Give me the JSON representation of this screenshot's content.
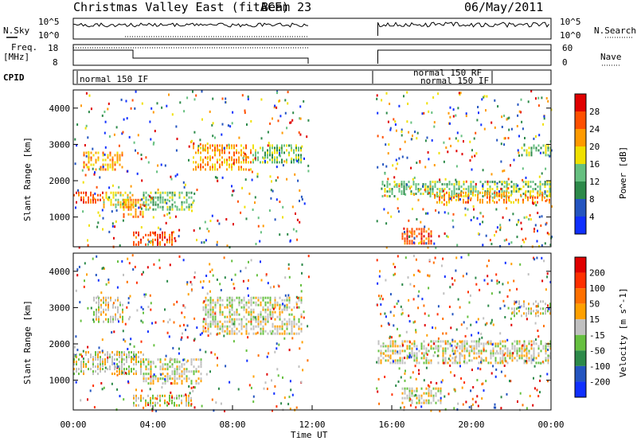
{
  "header": {
    "title": "Christmas Valley East (fitACF)",
    "beam": "Beam 23",
    "date": "06/May/2011"
  },
  "strips": {
    "nsky_label": "N.Sky",
    "nsky_ticks": [
      "10^5",
      "10^0"
    ],
    "nsearch_label": "N.Search",
    "nsearch_ticks": [
      "10^5",
      "10^0"
    ],
    "freq_label": "Freq.",
    "freq_unit": "[MHz]",
    "freq_ticks": [
      "18",
      "8"
    ],
    "nave_label": "Nave",
    "nave_ticks": [
      "60",
      "0"
    ],
    "cpid_label": "CPID",
    "cpid_entries": [
      "normal 150 IF",
      "normal 150 RF",
      "normal 150 IF"
    ]
  },
  "chart_data": [
    {
      "type": "heatmap",
      "title": "",
      "ylabel": "Slant Range [km]",
      "xlabel": "",
      "ylim": [
        180,
        4500
      ],
      "yticks": [
        1000,
        2000,
        3000,
        4000
      ],
      "colorbar_label": "Power [dB]",
      "colorbar_ticks": [
        4,
        8,
        12,
        16,
        20,
        24,
        28
      ],
      "colors": [
        "#1030ff",
        "#2455c0",
        "#2d8a4a",
        "#66c080",
        "#f0e000",
        "#ff9a00",
        "#ff5000",
        "#e00000"
      ],
      "bands": [
        {
          "x": [
            0.0,
            1.5
          ],
          "y": [
            1400,
            1700
          ],
          "level": 6
        },
        {
          "x": [
            1.5,
            3.0
          ],
          "y": [
            1300,
            1700
          ],
          "level": 4
        },
        {
          "x": [
            0.5,
            2.5
          ],
          "y": [
            2300,
            2800
          ],
          "level": 5
        },
        {
          "x": [
            2.5,
            3.5
          ],
          "y": [
            1000,
            1500
          ],
          "level": 5
        },
        {
          "x": [
            3.0,
            5.0
          ],
          "y": [
            250,
            600
          ],
          "level": 6
        },
        {
          "x": [
            3.5,
            6.0
          ],
          "y": [
            1200,
            1700
          ],
          "level": 3
        },
        {
          "x": [
            6.0,
            9.0
          ],
          "y": [
            2300,
            3000
          ],
          "level": 5
        },
        {
          "x": [
            9.0,
            11.5
          ],
          "y": [
            2500,
            3000
          ],
          "level": 3
        },
        {
          "x": [
            15.5,
            24.0
          ],
          "y": [
            1600,
            2000
          ],
          "level": 3
        },
        {
          "x": [
            18.0,
            24.0
          ],
          "y": [
            1400,
            1700
          ],
          "level": 5
        },
        {
          "x": [
            16.5,
            18.0
          ],
          "y": [
            300,
            700
          ],
          "level": 6
        },
        {
          "x": [
            22.5,
            24.0
          ],
          "y": [
            2700,
            3000
          ],
          "level": 3
        }
      ]
    },
    {
      "type": "heatmap",
      "title": "",
      "ylabel": "Slant Range [km]",
      "xlabel": "Time UT",
      "ylim": [
        180,
        4500
      ],
      "yticks": [
        1000,
        2000,
        3000,
        4000
      ],
      "xticks": [
        "00:00",
        "04:00",
        "08:00",
        "12:00",
        "16:00",
        "20:00",
        "00:00"
      ],
      "x_range_hours": [
        0,
        24
      ],
      "colorbar_label": "Velocity [m s^-1]",
      "colorbar_ticks": [
        200,
        100,
        50,
        15,
        -15,
        -50,
        -100,
        -200
      ],
      "colors": [
        "#1030ff",
        "#2455c0",
        "#2d8a4a",
        "#66c040",
        "#c0c0c0",
        "#ffa000",
        "#ff7000",
        "#ff3000",
        "#e00000"
      ],
      "bands": [
        {
          "x": [
            0.0,
            3.5
          ],
          "y": [
            1200,
            1800
          ],
          "level": 4
        },
        {
          "x": [
            1.0,
            2.5
          ],
          "y": [
            2600,
            3300
          ],
          "level": 4
        },
        {
          "x": [
            3.0,
            6.0
          ],
          "y": [
            300,
            600
          ],
          "level": 4
        },
        {
          "x": [
            3.5,
            6.5
          ],
          "y": [
            900,
            1600
          ],
          "level": 4
        },
        {
          "x": [
            6.5,
            11.5
          ],
          "y": [
            2300,
            3300
          ],
          "level": 4
        },
        {
          "x": [
            15.3,
            24.0
          ],
          "y": [
            1500,
            2100
          ],
          "level": 4
        },
        {
          "x": [
            16.5,
            18.5
          ],
          "y": [
            400,
            800
          ],
          "level": 4
        },
        {
          "x": [
            22.0,
            24.0
          ],
          "y": [
            2800,
            3200
          ],
          "level": 4
        }
      ]
    }
  ]
}
